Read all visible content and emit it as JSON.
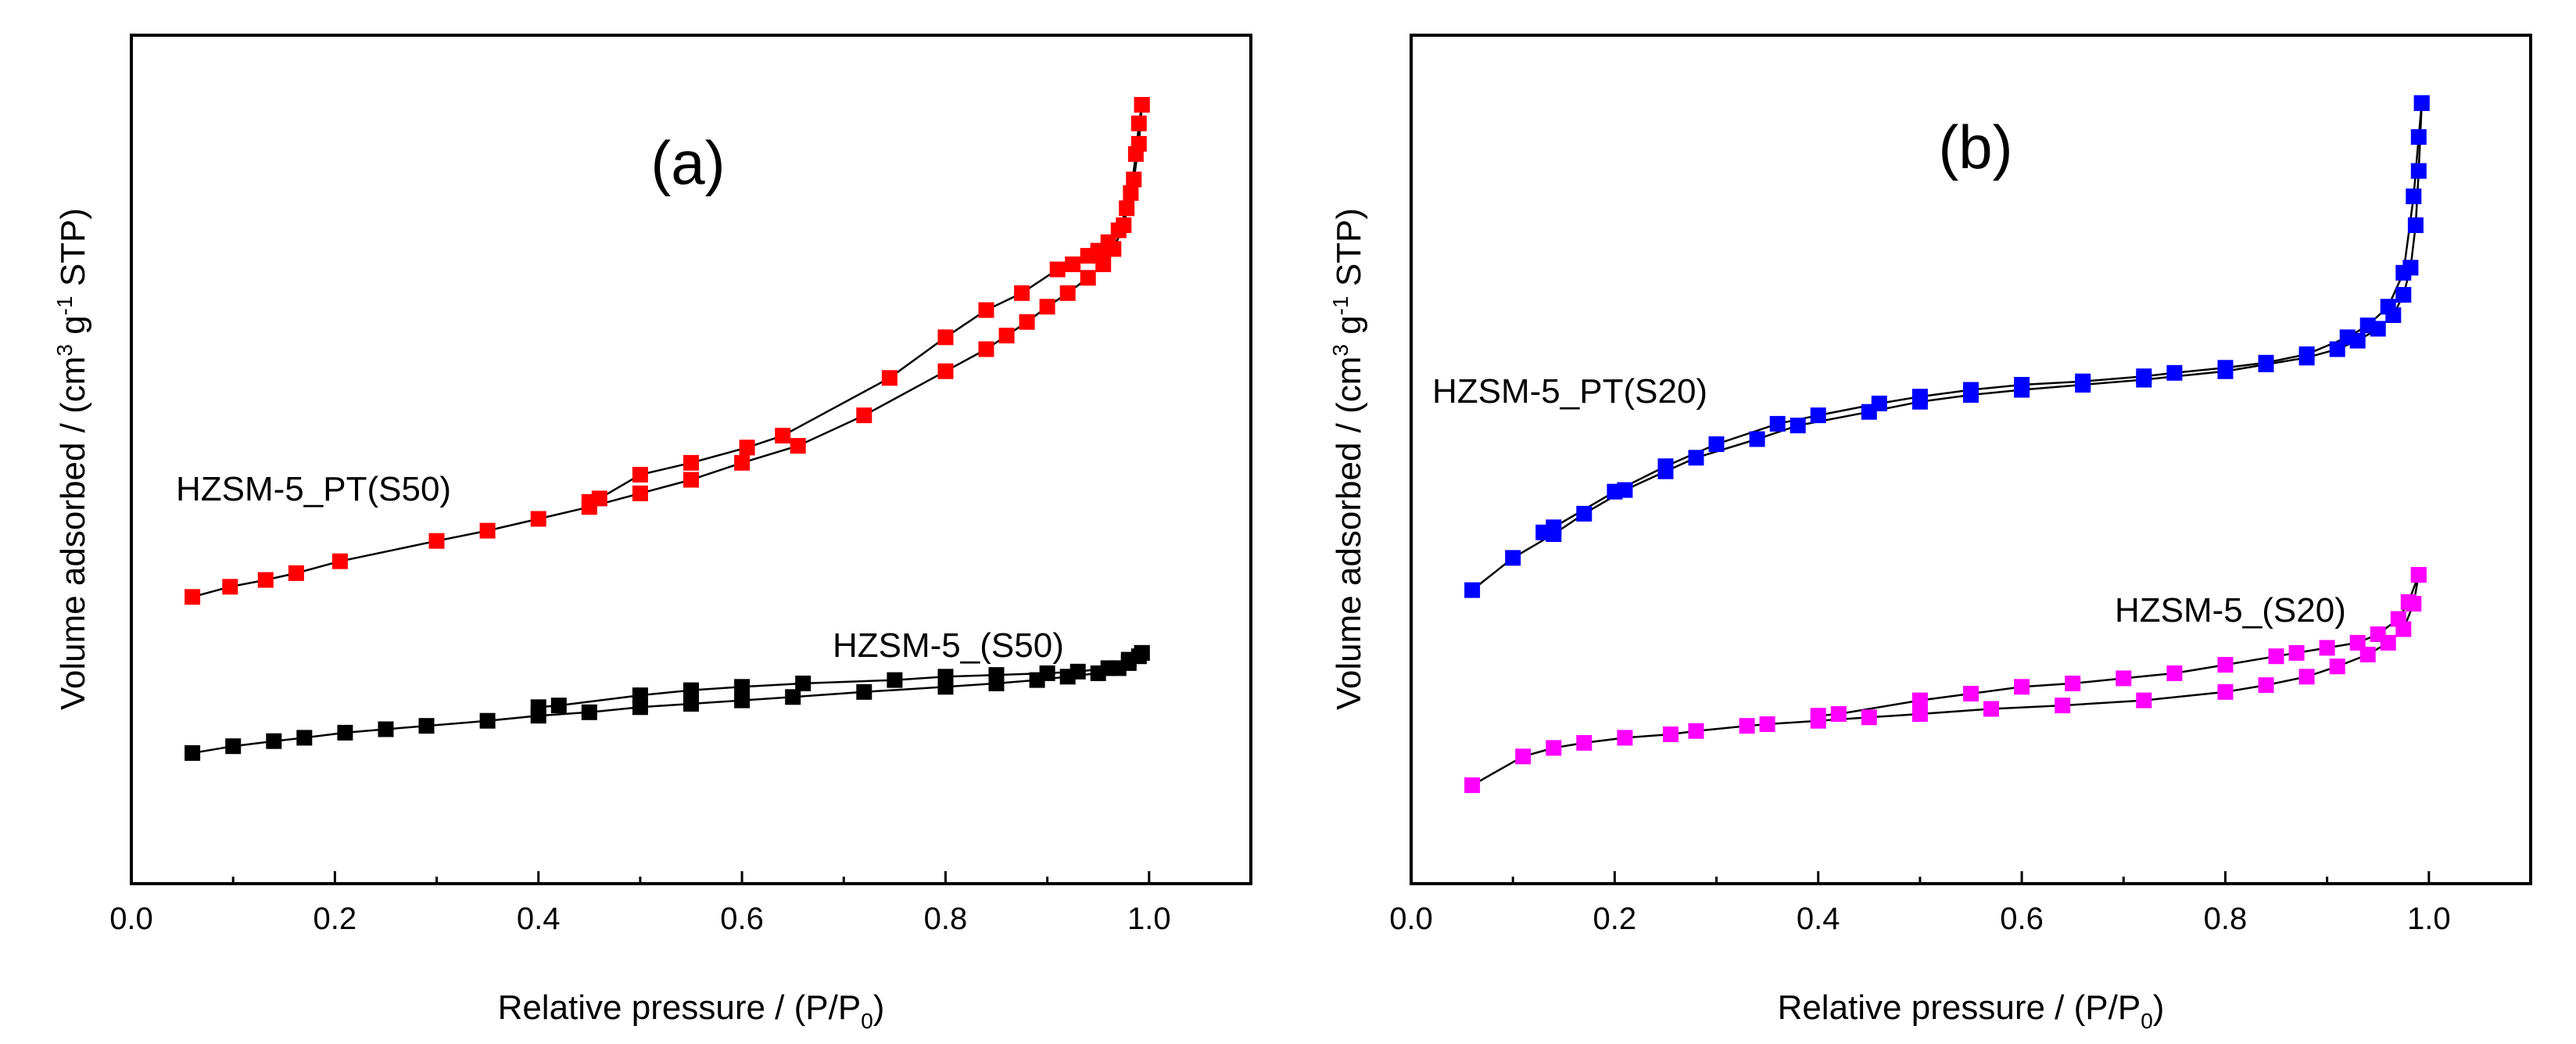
{
  "chart_data": [
    {
      "type": "line",
      "panel_label": "(a)",
      "xlabel_main": "Relative pressure / (P/P",
      "xlabel_sub": "0",
      "xlabel_end": ")",
      "ylabel_main": "Volume adsorbed / (cm",
      "ylabel_sup1": "3",
      "ylabel_mid": " g",
      "ylabel_sup2": "-1",
      "ylabel_end": " STP)",
      "xlim": [
        0.0,
        1.1
      ],
      "ylim": [
        0,
        100
      ],
      "xticks": [
        "0.0",
        "0.2",
        "0.4",
        "0.6",
        "0.8",
        "1.0"
      ],
      "grid": false,
      "series": [
        {
          "name": "HZSM-5_PT(S50)",
          "color": "#ff0000",
          "adsorption": [
            [
              0.06,
              33.8
            ],
            [
              0.097,
              35.0
            ],
            [
              0.132,
              35.8
            ],
            [
              0.162,
              36.6
            ],
            [
              0.205,
              38.0
            ],
            [
              0.3,
              40.4
            ],
            [
              0.35,
              41.6
            ],
            [
              0.4,
              43.0
            ],
            [
              0.45,
              44.4
            ],
            [
              0.5,
              46.0
            ],
            [
              0.55,
              47.6
            ],
            [
              0.6,
              49.6
            ],
            [
              0.655,
              51.6
            ],
            [
              0.72,
              55.2
            ],
            [
              0.8,
              60.4
            ],
            [
              0.84,
              63.0
            ],
            [
              0.86,
              64.6
            ],
            [
              0.88,
              66.2
            ],
            [
              0.9,
              68.0
            ],
            [
              0.92,
              69.6
            ],
            [
              0.94,
              71.4
            ],
            [
              0.955,
              73.0
            ],
            [
              0.965,
              74.8
            ],
            [
              0.975,
              77.6
            ],
            [
              0.982,
              81.4
            ],
            [
              0.987,
              86.0
            ],
            [
              0.99,
              89.6
            ],
            [
              0.993,
              91.8
            ]
          ],
          "desorption": [
            [
              0.993,
              91.8
            ],
            [
              0.99,
              87.2
            ],
            [
              0.985,
              83.0
            ],
            [
              0.978,
              79.6
            ],
            [
              0.97,
              77.0
            ],
            [
              0.96,
              75.6
            ],
            [
              0.95,
              74.6
            ],
            [
              0.94,
              74.0
            ],
            [
              0.925,
              73.0
            ],
            [
              0.91,
              72.4
            ],
            [
              0.875,
              69.6
            ],
            [
              0.84,
              67.6
            ],
            [
              0.8,
              64.4
            ],
            [
              0.745,
              59.6
            ],
            [
              0.64,
              52.8
            ],
            [
              0.605,
              51.4
            ],
            [
              0.55,
              49.6
            ],
            [
              0.5,
              48.2
            ],
            [
              0.46,
              45.4
            ],
            [
              0.45,
              45.0
            ]
          ]
        },
        {
          "name": "HZSM-5_(S50)",
          "color": "#000000",
          "adsorption": [
            [
              0.06,
              15.4
            ],
            [
              0.1,
              16.2
            ],
            [
              0.14,
              16.8
            ],
            [
              0.17,
              17.2
            ],
            [
              0.21,
              17.8
            ],
            [
              0.25,
              18.2
            ],
            [
              0.29,
              18.6
            ],
            [
              0.35,
              19.2
            ],
            [
              0.4,
              19.8
            ],
            [
              0.45,
              20.2
            ],
            [
              0.5,
              20.8
            ],
            [
              0.55,
              21.2
            ],
            [
              0.6,
              21.6
            ],
            [
              0.65,
              22.0
            ],
            [
              0.72,
              22.6
            ],
            [
              0.8,
              23.2
            ],
            [
              0.85,
              23.6
            ],
            [
              0.89,
              24.0
            ],
            [
              0.92,
              24.4
            ],
            [
              0.95,
              24.8
            ],
            [
              0.97,
              25.4
            ],
            [
              0.98,
              26.0
            ],
            [
              0.99,
              26.8
            ],
            [
              0.993,
              27.2
            ]
          ],
          "desorption": [
            [
              0.993,
              27.2
            ],
            [
              0.98,
              26.4
            ],
            [
              0.96,
              25.4
            ],
            [
              0.93,
              25.0
            ],
            [
              0.9,
              24.8
            ],
            [
              0.85,
              24.6
            ],
            [
              0.8,
              24.4
            ],
            [
              0.75,
              24.0
            ],
            [
              0.66,
              23.6
            ],
            [
              0.6,
              23.2
            ],
            [
              0.55,
              22.8
            ],
            [
              0.5,
              22.2
            ],
            [
              0.42,
              21.0
            ],
            [
              0.4,
              20.8
            ]
          ]
        }
      ],
      "annotations": [
        "HZSM-5_PT(S50)",
        "HZSM-5_(S50)"
      ]
    },
    {
      "type": "line",
      "panel_label": "(b)",
      "xlabel_main": "Relative pressure / (P/P",
      "xlabel_sub": "0",
      "xlabel_end": ")",
      "ylabel_main": "Volume adsorbed / (cm",
      "ylabel_sup1": "3",
      "ylabel_mid": " g",
      "ylabel_sup2": "-1",
      "ylabel_end": " STP)",
      "xlim": [
        0.0,
        1.1
      ],
      "ylim": [
        0,
        100
      ],
      "xticks": [
        "0.0",
        "0.2",
        "0.4",
        "0.6",
        "0.8",
        "1.0"
      ],
      "grid": false,
      "series": [
        {
          "name": "HZSM-5_PT(S20)",
          "color": "#0000ff",
          "adsorption": [
            [
              0.06,
              34.6
            ],
            [
              0.1,
              38.4
            ],
            [
              0.14,
              41.2
            ],
            [
              0.17,
              43.6
            ],
            [
              0.21,
              46.4
            ],
            [
              0.25,
              48.6
            ],
            [
              0.28,
              50.2
            ],
            [
              0.34,
              52.4
            ],
            [
              0.38,
              54.0
            ],
            [
              0.45,
              55.6
            ],
            [
              0.5,
              56.8
            ],
            [
              0.55,
              57.6
            ],
            [
              0.6,
              58.2
            ],
            [
              0.66,
              58.8
            ],
            [
              0.72,
              59.4
            ],
            [
              0.8,
              60.4
            ],
            [
              0.84,
              61.2
            ],
            [
              0.88,
              62.0
            ],
            [
              0.91,
              63.0
            ],
            [
              0.93,
              64.0
            ],
            [
              0.95,
              65.4
            ],
            [
              0.965,
              67.0
            ],
            [
              0.975,
              69.4
            ],
            [
              0.982,
              72.6
            ],
            [
              0.987,
              77.6
            ],
            [
              0.99,
              84.0
            ],
            [
              0.993,
              92.0
            ]
          ],
          "desorption": [
            [
              0.993,
              92.0
            ],
            [
              0.99,
              88.0
            ],
            [
              0.985,
              81.0
            ],
            [
              0.975,
              72.0
            ],
            [
              0.96,
              68.0
            ],
            [
              0.94,
              65.8
            ],
            [
              0.92,
              64.4
            ],
            [
              0.88,
              62.4
            ],
            [
              0.84,
              61.4
            ],
            [
              0.8,
              60.8
            ],
            [
              0.75,
              60.2
            ],
            [
              0.72,
              59.8
            ],
            [
              0.66,
              59.2
            ],
            [
              0.6,
              58.8
            ],
            [
              0.55,
              58.2
            ],
            [
              0.5,
              57.4
            ],
            [
              0.46,
              56.6
            ],
            [
              0.4,
              55.2
            ],
            [
              0.36,
              54.2
            ],
            [
              0.3,
              51.8
            ],
            [
              0.25,
              49.2
            ],
            [
              0.2,
              46.2
            ],
            [
              0.14,
              42.0
            ],
            [
              0.13,
              41.4
            ]
          ]
        },
        {
          "name": "HZSM-5_(S20)",
          "color": "#ff00ff",
          "adsorption": [
            [
              0.06,
              11.6
            ],
            [
              0.11,
              15.0
            ],
            [
              0.14,
              16.0
            ],
            [
              0.17,
              16.6
            ],
            [
              0.21,
              17.2
            ],
            [
              0.255,
              17.6
            ],
            [
              0.28,
              18.0
            ],
            [
              0.33,
              18.6
            ],
            [
              0.35,
              18.8
            ],
            [
              0.4,
              19.2
            ],
            [
              0.45,
              19.6
            ],
            [
              0.5,
              20.0
            ],
            [
              0.57,
              20.6
            ],
            [
              0.64,
              21.0
            ],
            [
              0.72,
              21.6
            ],
            [
              0.8,
              22.6
            ],
            [
              0.84,
              23.4
            ],
            [
              0.88,
              24.4
            ],
            [
              0.91,
              25.6
            ],
            [
              0.94,
              27.0
            ],
            [
              0.96,
              28.4
            ],
            [
              0.975,
              30.0
            ],
            [
              0.985,
              33.0
            ],
            [
              0.99,
              36.4
            ]
          ],
          "desorption": [
            [
              0.99,
              36.4
            ],
            [
              0.98,
              33.2
            ],
            [
              0.97,
              31.2
            ],
            [
              0.95,
              29.4
            ],
            [
              0.93,
              28.4
            ],
            [
              0.9,
              27.8
            ],
            [
              0.87,
              27.2
            ],
            [
              0.85,
              26.8
            ],
            [
              0.8,
              25.8
            ],
            [
              0.75,
              24.8
            ],
            [
              0.7,
              24.2
            ],
            [
              0.65,
              23.6
            ],
            [
              0.6,
              23.2
            ],
            [
              0.55,
              22.4
            ],
            [
              0.5,
              21.6
            ],
            [
              0.42,
              20.0
            ],
            [
              0.4,
              19.8
            ]
          ]
        }
      ],
      "annotations": [
        "HZSM-5_PT(S20)",
        "HZSM-5_(S20)"
      ]
    }
  ]
}
